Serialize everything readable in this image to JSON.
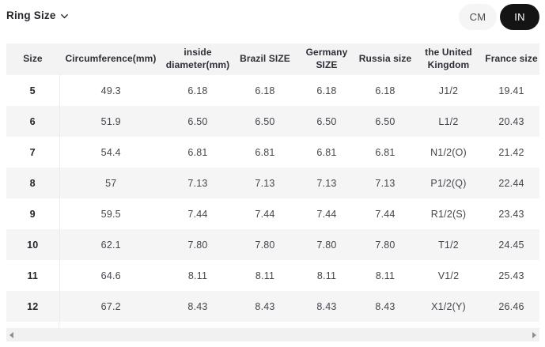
{
  "header": {
    "dropdown_label": "Ring Size"
  },
  "unit_toggle": {
    "cm_label": "CM",
    "in_label": "IN",
    "selected": "IN"
  },
  "colors": {
    "selected_toggle_bg": "#141414",
    "selected_toggle_text": "#ffffff",
    "unselected_toggle_bg": "#f5f5f5",
    "table_header_bg": "#f3f3f4",
    "row_stripe_bg": "#f5f5f6"
  },
  "chart_data": {
    "type": "table",
    "columns": [
      "Size",
      "Circumference(mm)",
      "inside diameter(mm)",
      "Brazil SIZE",
      "Germany SIZE",
      "Russia size",
      "the United Kingdom",
      "France size"
    ],
    "rows": [
      [
        "5",
        "49.3",
        "6.18",
        "6.18",
        "6.18",
        "6.18",
        "J1/2",
        "19.41"
      ],
      [
        "6",
        "51.9",
        "6.50",
        "6.50",
        "6.50",
        "6.50",
        "L1/2",
        "20.43"
      ],
      [
        "7",
        "54.4",
        "6.81",
        "6.81",
        "6.81",
        "6.81",
        "N1/2(O)",
        "21.42"
      ],
      [
        "8",
        "57",
        "7.13",
        "7.13",
        "7.13",
        "7.13",
        "P1/2(Q)",
        "22.44"
      ],
      [
        "9",
        "59.5",
        "7.44",
        "7.44",
        "7.44",
        "7.44",
        "R1/2(S)",
        "23.43"
      ],
      [
        "10",
        "62.1",
        "7.80",
        "7.80",
        "7.80",
        "7.80",
        "T1/2",
        "24.45"
      ],
      [
        "11",
        "64.6",
        "8.11",
        "8.11",
        "8.11",
        "8.11",
        "V1/2",
        "25.43"
      ],
      [
        "12",
        "67.2",
        "8.43",
        "8.43",
        "8.43",
        "8.43",
        "X1/2(Y)",
        "26.46"
      ]
    ]
  }
}
